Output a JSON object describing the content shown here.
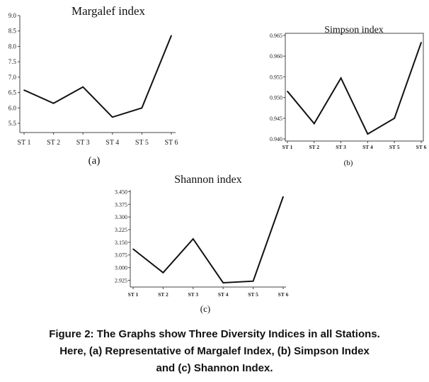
{
  "chart_data": [
    {
      "type": "line",
      "title": "Margalef index",
      "panel_label": "(a)",
      "categories": [
        "ST 1",
        "ST 2",
        "ST 3",
        "ST 4",
        "ST 5",
        "ST 6"
      ],
      "series": [
        {
          "values": [
            6.58,
            6.15,
            6.68,
            5.7,
            6.0,
            8.35
          ]
        }
      ],
      "yticks": [
        "5.5",
        "6.0",
        "6.5",
        "7.0",
        "7.5",
        "8.0",
        "8.5",
        "9.0"
      ],
      "ylim": [
        5.2,
        9.0
      ]
    },
    {
      "type": "line",
      "title": "Simpson index",
      "panel_label": "(b)",
      "categories": [
        "ST 1",
        "ST 2",
        "ST 3",
        "ST 4",
        "ST 5",
        "ST 6"
      ],
      "series": [
        {
          "values": [
            0.9515,
            0.9437,
            0.9547,
            0.9412,
            0.945,
            0.9633
          ]
        }
      ],
      "yticks": [
        "0.940",
        "0.945",
        "0.950",
        "0.955",
        "0.960",
        "0.965"
      ],
      "ylim": [
        0.9395,
        0.9655
      ]
    },
    {
      "type": "line",
      "title": "Shannon index",
      "panel_label": "(c)",
      "categories": [
        "ST 1",
        "ST 2",
        "ST 3",
        "ST 4",
        "ST 5",
        "ST 6"
      ],
      "series": [
        {
          "values": [
            3.11,
            2.97,
            3.17,
            2.91,
            2.92,
            3.42
          ]
        }
      ],
      "yticks": [
        "2.925",
        "3.000",
        "3.075",
        "3.150",
        "3.225",
        "3.300",
        "3.375",
        "3.450"
      ],
      "ylim": [
        2.885,
        3.46
      ]
    }
  ],
  "caption": {
    "line1": "Figure 2: The Graphs show Three Diversity Indices in all Stations.",
    "line2": "Here, (a) Representative of Margalef Index, (b) Simpson Index",
    "line3": "and (c) Shannon Index."
  }
}
